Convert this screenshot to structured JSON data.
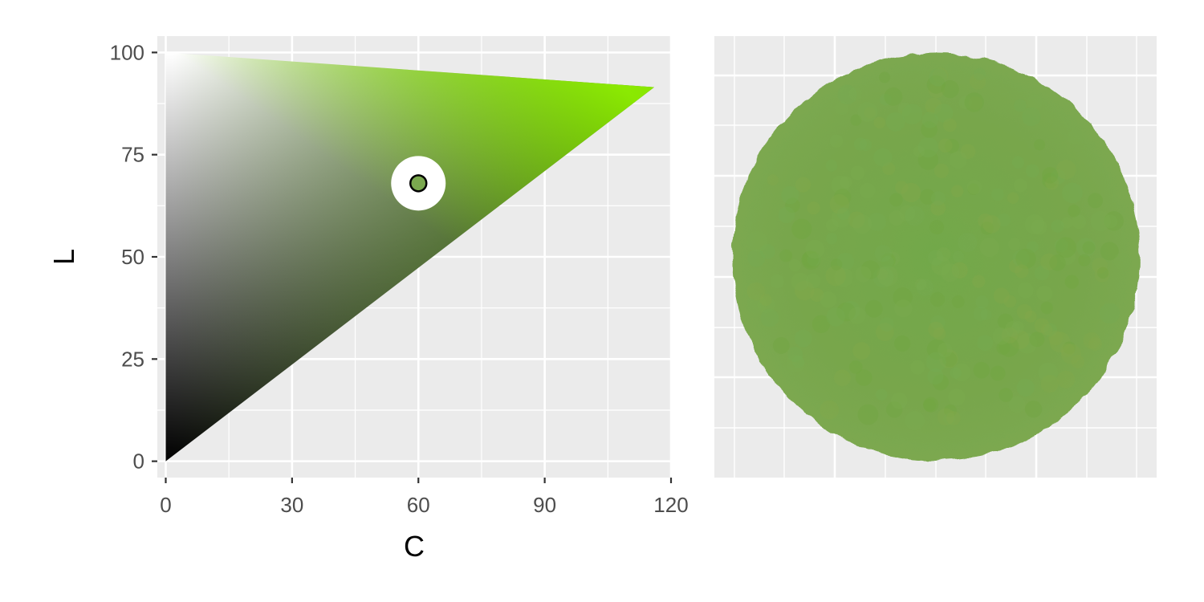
{
  "chart_data": [
    {
      "type": "scatter",
      "panel": "lc-gamut",
      "description_free": true,
      "xlabel": "C",
      "ylabel": "L",
      "xlim": [
        -2,
        120
      ],
      "ylim": [
        -4,
        104
      ],
      "x_major_ticks": [
        0,
        30,
        60,
        90,
        120
      ],
      "x_tick_labels": [
        "0",
        "30",
        "60",
        "90",
        "120"
      ],
      "y_major_ticks": [
        0,
        25,
        50,
        75,
        100
      ],
      "y_tick_labels": [
        "0",
        "25",
        "50",
        "75",
        "100"
      ],
      "x_minor_ticks": [
        15,
        45,
        75,
        105
      ],
      "y_minor_ticks": [
        12.5,
        37.5,
        62.5,
        87.5
      ],
      "grid": true,
      "gamut_vertices": [
        [
          0,
          0
        ],
        [
          0,
          100
        ],
        [
          116,
          91.5
        ]
      ],
      "gamut_colors": {
        "black": "#000000",
        "white": "#ffffff",
        "peak": "#99ff00",
        "mid": "#336600"
      },
      "highlight_point": {
        "C": 60,
        "L": 68,
        "color": "#7aa84e"
      }
    },
    {
      "type": "scatter",
      "panel": "color-swatch",
      "grid": true,
      "colors": [
        "#7aab50",
        "#6fa63e",
        "#84a84a",
        "#76ad52"
      ]
    }
  ]
}
